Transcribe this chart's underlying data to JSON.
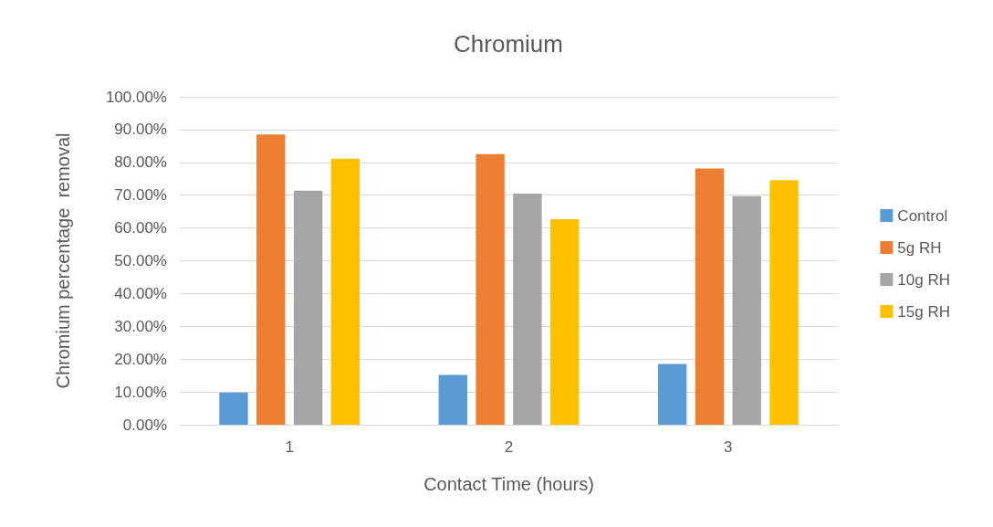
{
  "chart_data": {
    "type": "bar",
    "title": "Chromium",
    "xlabel": "Contact Time (hours)",
    "ylabel": "Chromium percentage  removal",
    "categories": [
      "1",
      "2",
      "3"
    ],
    "series": [
      {
        "name": "Control",
        "color": "#5b9bd5",
        "values": [
          9.8,
          15.2,
          18.5
        ]
      },
      {
        "name": "5g RH",
        "color": "#ed7d31",
        "values": [
          88.5,
          82.5,
          78.1
        ]
      },
      {
        "name": "10g RH",
        "color": "#a5a5a5",
        "values": [
          71.4,
          70.5,
          69.7
        ]
      },
      {
        "name": "15g RH",
        "color": "#ffc000",
        "values": [
          81.1,
          62.7,
          74.6
        ]
      }
    ],
    "ylim": [
      0,
      100
    ],
    "yticks": [
      {
        "value": 0,
        "label": "0.00%"
      },
      {
        "value": 10,
        "label": "10.00%"
      },
      {
        "value": 20,
        "label": "20.00%"
      },
      {
        "value": 30,
        "label": "30.00%"
      },
      {
        "value": 40,
        "label": "40.00%"
      },
      {
        "value": 50,
        "label": "50.00%"
      },
      {
        "value": 60,
        "label": "60.00%"
      },
      {
        "value": 70,
        "label": "70.00%"
      },
      {
        "value": 80,
        "label": "80.00%"
      },
      {
        "value": 90,
        "label": "90.00%"
      },
      {
        "value": 100,
        "label": "100.00%"
      }
    ],
    "grid": "y",
    "legend": "right"
  }
}
